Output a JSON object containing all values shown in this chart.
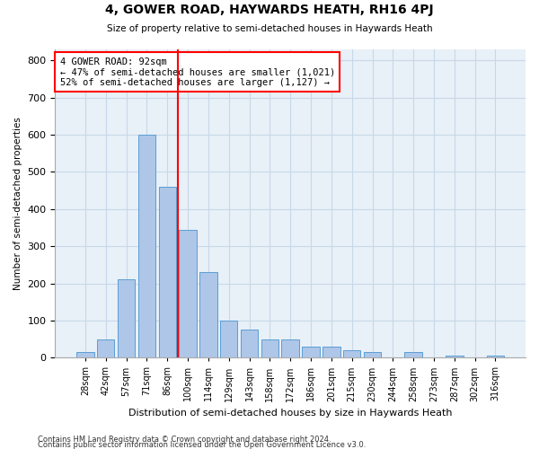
{
  "title": "4, GOWER ROAD, HAYWARDS HEATH, RH16 4PJ",
  "subtitle": "Size of property relative to semi-detached houses in Haywards Heath",
  "xlabel": "Distribution of semi-detached houses by size in Haywards Heath",
  "ylabel": "Number of semi-detached properties",
  "footnote1": "Contains HM Land Registry data © Crown copyright and database right 2024.",
  "footnote2": "Contains public sector information licensed under the Open Government Licence v3.0.",
  "bins": [
    "28sqm",
    "42sqm",
    "57sqm",
    "71sqm",
    "86sqm",
    "100sqm",
    "114sqm",
    "129sqm",
    "143sqm",
    "158sqm",
    "172sqm",
    "186sqm",
    "201sqm",
    "215sqm",
    "230sqm",
    "244sqm",
    "258sqm",
    "273sqm",
    "287sqm",
    "302sqm",
    "316sqm"
  ],
  "values": [
    15,
    48,
    210,
    600,
    460,
    345,
    230,
    100,
    75,
    50,
    50,
    30,
    30,
    20,
    15,
    0,
    15,
    0,
    5,
    0,
    5
  ],
  "bar_color": "#aec6e8",
  "bar_edge_color": "#5a9fd4",
  "grid_color": "#c8d8e8",
  "bg_color": "#e8f0f8",
  "red_line_x": 4.5,
  "annotation_line1": "4 GOWER ROAD: 92sqm",
  "annotation_line2": "← 47% of semi-detached houses are smaller (1,021)",
  "annotation_line3": "52% of semi-detached houses are larger (1,127) →",
  "ylim": [
    0,
    830
  ],
  "yticks": [
    0,
    100,
    200,
    300,
    400,
    500,
    600,
    700,
    800
  ]
}
